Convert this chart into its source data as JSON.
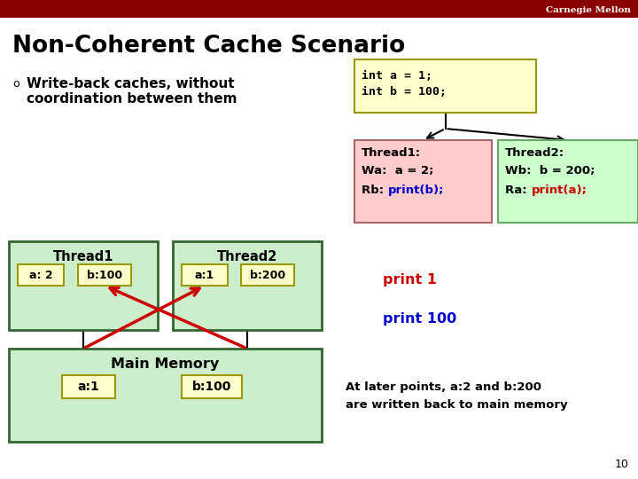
{
  "title": "Non-Coherent Cache Scenario",
  "header_color": "#8B0000",
  "header_text": "Carnegie Mellon",
  "header_text_color": "#FFFFFF",
  "bg_color": "#FFFFFF",
  "title_color": "#000000",
  "bullet_symbol": "¢",
  "bullet_text_line1": "Write-back caches, without",
  "bullet_text_line2": "coordination between them",
  "bullet_color": "#000000",
  "code_box_color": "#FFFFCC",
  "code_box_edge": "#999900",
  "code_text_line1": "int a = 1;",
  "code_text_line2": "int b = 100;",
  "thread1_box_color": "#FFCCCC",
  "thread1_box_edge": "#AA6666",
  "thread1_label": "Thread1:",
  "thread1_line1": "Wa:  a = 2;",
  "thread1_line2_pre": "Rb:  ",
  "thread1_line2_blue": "print(b);",
  "thread2_box_color": "#CCFFCC",
  "thread2_box_edge": "#66AA66",
  "thread2_label": "Thread2:",
  "thread2_line1": "Wb:  b = 200;",
  "thread2_line2_pre": "Ra:  ",
  "thread2_line2_red": "print(a);",
  "blue_color": "#0000CC",
  "red_color": "#CC0000",
  "cache_bg_color": "#CCEECC",
  "cache_border_color": "#336633",
  "cache_cell_color": "#FFFFCC",
  "cache_cell_border": "#999900",
  "arrow_color": "#CC0000",
  "print1_text": "print 1",
  "print1_color": "#CC0000",
  "print100_text": "print 100",
  "print100_color": "#0000CC",
  "note_line1": "At later points, a:2 and b:200",
  "note_line2": "are written back to main memory",
  "note_color": "#000000",
  "page_number": "10"
}
